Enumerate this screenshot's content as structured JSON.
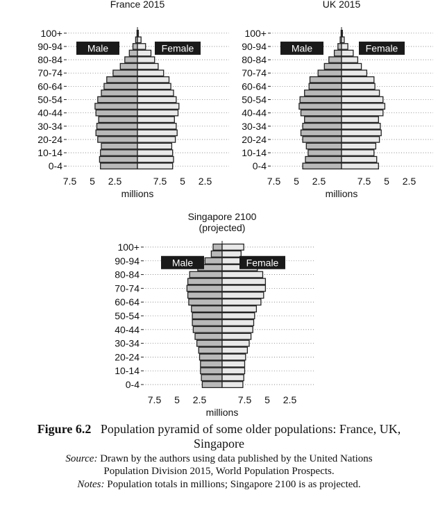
{
  "chart_data": [
    {
      "type": "bar",
      "subtype": "population-pyramid",
      "title": "France 2015",
      "subtitle": "",
      "age_groups": [
        "0-4",
        "5-9",
        "10-14",
        "15-19",
        "20-24",
        "25-29",
        "30-34",
        "35-39",
        "40-44",
        "45-49",
        "50-54",
        "55-59",
        "60-64",
        "65-69",
        "70-74",
        "75-79",
        "80-84",
        "85-89",
        "90-94",
        "95-99",
        "100+"
      ],
      "age_tick_labels": [
        "0-4",
        "10-14",
        "20-24",
        "30-34",
        "40-44",
        "50-54",
        "60-64",
        "70-74",
        "80-84",
        "90-94",
        "100+"
      ],
      "series": [
        {
          "name": "Male",
          "values": [
            4.1,
            4.2,
            4.1,
            4.0,
            4.4,
            4.6,
            4.5,
            4.3,
            4.6,
            4.7,
            4.4,
            4.0,
            3.7,
            3.4,
            2.7,
            1.9,
            1.4,
            0.9,
            0.5,
            0.2,
            0.05
          ]
        },
        {
          "name": "Female",
          "values": [
            3.9,
            4.0,
            3.9,
            3.8,
            4.2,
            4.4,
            4.3,
            4.1,
            4.5,
            4.6,
            4.3,
            4.0,
            3.7,
            3.5,
            2.9,
            2.3,
            1.9,
            1.5,
            0.9,
            0.4,
            0.1
          ]
        }
      ],
      "xlabel": "millions",
      "x_tick_labels": [
        "7.5",
        "5",
        "2.5",
        "",
        "7.5",
        "5",
        "2.5"
      ],
      "xlim": [
        -10,
        10
      ],
      "grid": true,
      "legend": "inside-top"
    },
    {
      "type": "bar",
      "subtype": "population-pyramid",
      "title": "UK 2015",
      "subtitle": "",
      "age_groups": [
        "0-4",
        "5-9",
        "10-14",
        "15-19",
        "20-24",
        "25-29",
        "30-34",
        "35-39",
        "40-44",
        "45-49",
        "50-54",
        "55-59",
        "60-64",
        "65-69",
        "70-74",
        "75-79",
        "80-84",
        "85-89",
        "90-94",
        "95-99",
        "100+"
      ],
      "age_tick_labels": [
        "0-4",
        "10-14",
        "20-24",
        "30-34",
        "40-44",
        "50-54",
        "60-64",
        "70-74",
        "80-84",
        "90-94",
        "100+"
      ],
      "series": [
        {
          "name": "Male",
          "values": [
            4.3,
            4.0,
            3.7,
            3.9,
            4.3,
            4.5,
            4.3,
            4.1,
            4.5,
            4.7,
            4.6,
            4.1,
            3.6,
            3.5,
            2.6,
            1.9,
            1.4,
            0.8,
            0.4,
            0.15,
            0.05
          ]
        },
        {
          "name": "Female",
          "values": [
            4.1,
            3.9,
            3.6,
            3.8,
            4.2,
            4.4,
            4.3,
            4.1,
            4.6,
            4.8,
            4.6,
            4.2,
            3.7,
            3.6,
            2.8,
            2.2,
            1.8,
            1.3,
            0.7,
            0.3,
            0.1
          ]
        }
      ],
      "xlabel": "millions",
      "x_tick_labels": [
        "7.5",
        "5",
        "2.5",
        "",
        "7.5",
        "5",
        "2.5"
      ],
      "xlim": [
        -10,
        10
      ],
      "grid": true,
      "legend": "inside-top"
    },
    {
      "type": "bar",
      "subtype": "population-pyramid",
      "title": "Singapore 2100",
      "subtitle": "(projected)",
      "age_groups": [
        "0-4",
        "5-9",
        "10-14",
        "15-19",
        "20-24",
        "25-29",
        "30-34",
        "35-39",
        "40-44",
        "45-49",
        "50-54",
        "55-59",
        "60-64",
        "65-69",
        "70-74",
        "75-79",
        "80-84",
        "85-89",
        "90-94",
        "95-99",
        "100+"
      ],
      "age_tick_labels": [
        "0-4",
        "10-14",
        "20-24",
        "30-34",
        "40-44",
        "50-54",
        "60-64",
        "70-74",
        "80-84",
        "90-94",
        "100+"
      ],
      "series": [
        {
          "name": "Male",
          "values": [
            2.2,
            2.3,
            2.4,
            2.4,
            2.5,
            2.6,
            2.8,
            3.0,
            3.2,
            3.3,
            3.3,
            3.4,
            3.7,
            3.8,
            3.9,
            3.8,
            3.6,
            2.7,
            1.9,
            1.2,
            1.0
          ]
        },
        {
          "name": "Female",
          "values": [
            2.3,
            2.4,
            2.5,
            2.5,
            2.6,
            2.8,
            3.0,
            3.2,
            3.4,
            3.5,
            3.6,
            3.8,
            4.3,
            4.6,
            4.8,
            4.8,
            4.5,
            3.9,
            2.8,
            2.1,
            2.4
          ]
        }
      ],
      "xlabel": "millions",
      "x_tick_labels": [
        "7.5",
        "5",
        "2.5",
        "",
        "7.5",
        "5",
        "2.5"
      ],
      "xlim": [
        -10,
        10
      ],
      "grid": true,
      "legend": "inside-top"
    }
  ],
  "caption": {
    "figure_label": "Figure 6.2",
    "figure_text": "Population pyramid of some older populations: France, UK,",
    "figure_text_2": "Singapore",
    "source_label": "Source:",
    "source_text": "Drawn by the authors using data published by the United Nations",
    "source_text_2": "Population Division 2015, World Population Prospects.",
    "notes_label": "Notes:",
    "notes_text": "Population totals in millions; Singapore 2100 is as projected."
  }
}
